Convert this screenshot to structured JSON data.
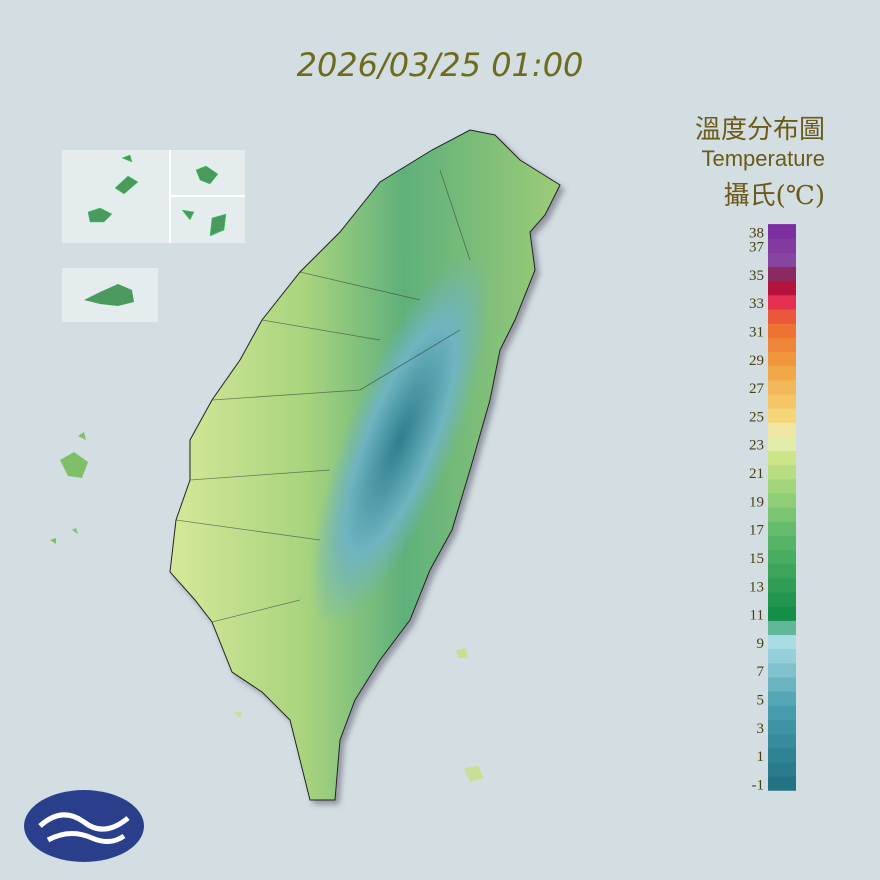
{
  "timestamp": "2026/03/25 01:00",
  "legend": {
    "title": "溫度分布圖",
    "subtitle": "Temperature",
    "unit": "攝氏(℃)",
    "ticks": [
      38,
      37,
      35,
      33,
      31,
      29,
      27,
      25,
      23,
      21,
      19,
      17,
      15,
      13,
      11,
      9,
      7,
      5,
      3,
      1,
      -1
    ]
  }
}
